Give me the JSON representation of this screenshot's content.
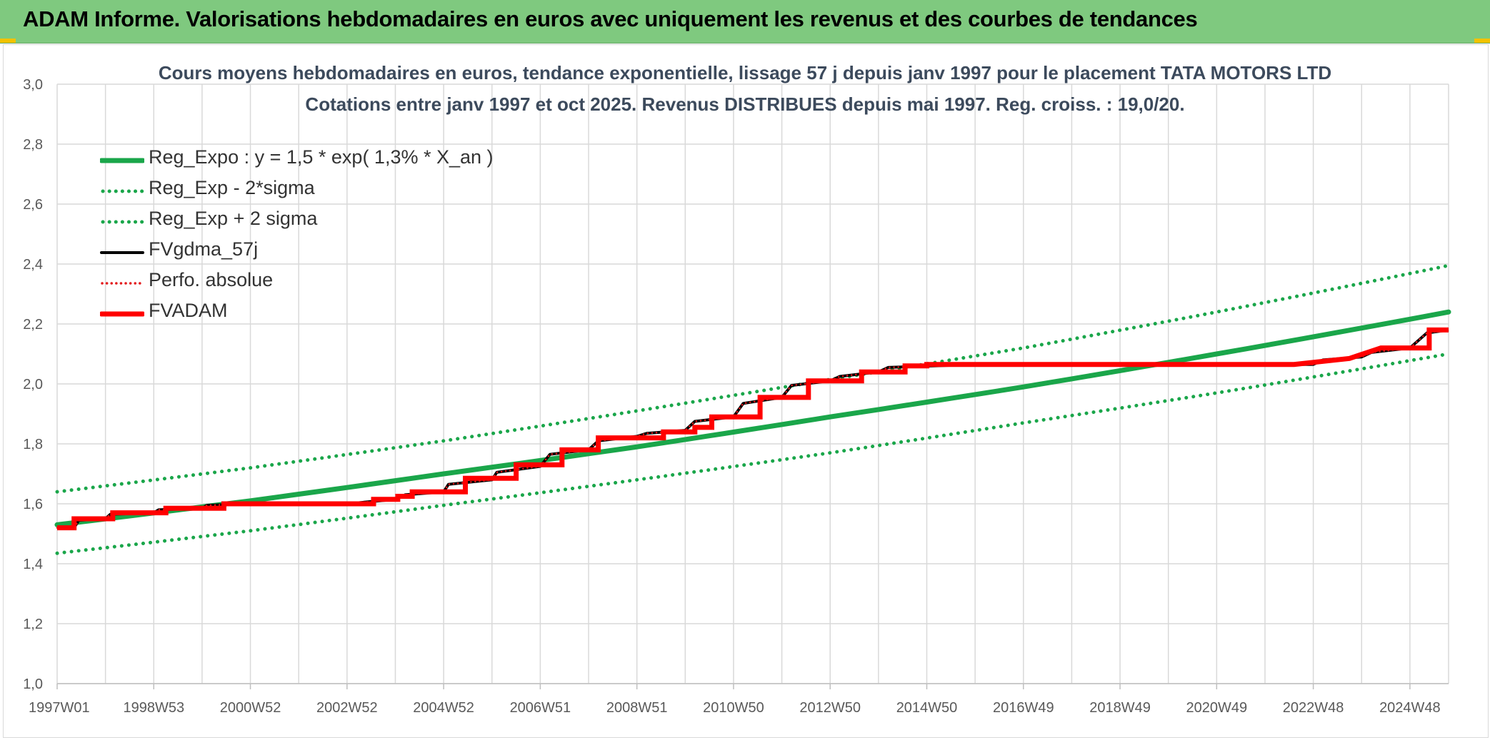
{
  "header": {
    "title": "ADAM Informe. Valorisations hebdomadaires en euros avec uniquement les revenus et des courbes de tendances"
  },
  "colors": {
    "header_bg": "#7fc97f",
    "trend_green": "#1aa64a",
    "band_green": "#1aa64a",
    "fvgdma_black": "#000000",
    "perfo_red": "#e31a1c",
    "fvadam_red": "#ff0000",
    "grid": "#d9d9d9"
  },
  "chart_data": {
    "type": "line",
    "title": "Cours moyens hebdomadaires en euros, tendance exponentielle, lissage 57 j depuis janv 1997 pour le placement TATA MOTORS LTD",
    "subtitle": "Cotations entre janv 1997 et oct 2025. Revenus DISTRIBUES depuis mai 1997. Reg. croiss. : 19,0/20.",
    "xlabel": "",
    "ylabel": "",
    "x_range": [
      1997.0,
      2025.8
    ],
    "ylim": [
      1.0,
      3.0
    ],
    "y_ticks": [
      "1,0",
      "1,2",
      "1,4",
      "1,6",
      "1,8",
      "2,0",
      "2,2",
      "2,4",
      "2,6",
      "2,8",
      "3,0"
    ],
    "y_tick_values": [
      1.0,
      1.2,
      1.4,
      1.6,
      1.8,
      2.0,
      2.2,
      2.4,
      2.6,
      2.8,
      3.0
    ],
    "x_tick_labels": [
      "1997W01",
      "1998W53",
      "2000W52",
      "2002W52",
      "2004W52",
      "2006W51",
      "2008W51",
      "2010W50",
      "2012W50",
      "2014W50",
      "2016W49",
      "2018W49",
      "2020W49",
      "2022W48",
      "2024W48"
    ],
    "x_tick_values": [
      1997.0,
      1999.0,
      2001.0,
      2003.0,
      2005.0,
      2007.0,
      2009.0,
      2011.0,
      2013.0,
      2015.0,
      2017.0,
      2019.0,
      2021.0,
      2023.0,
      2025.0
    ],
    "grid": true,
    "legend_position": "top-left",
    "series": [
      {
        "name": "Reg_Expo : y = 1,5 * exp( 1,3% *  X_an )",
        "style": "solid-thick",
        "x": [
          1997.0,
          2001.0,
          2005.0,
          2009.0,
          2013.0,
          2017.0,
          2021.0,
          2025.8
        ],
        "y": [
          1.53,
          1.61,
          1.7,
          1.79,
          1.89,
          1.99,
          2.1,
          2.24
        ]
      },
      {
        "name": "Reg_Exp - 2*sigma",
        "style": "dotted-green",
        "x": [
          1997.0,
          2001.0,
          2005.0,
          2009.0,
          2013.0,
          2017.0,
          2021.0,
          2025.8
        ],
        "y": [
          1.435,
          1.51,
          1.595,
          1.68,
          1.77,
          1.87,
          1.97,
          2.1
        ]
      },
      {
        "name": "Reg_Exp + 2 sigma",
        "style": "dotted-green",
        "x": [
          1997.0,
          2001.0,
          2005.0,
          2009.0,
          2013.0,
          2017.0,
          2021.0,
          2025.8
        ],
        "y": [
          1.64,
          1.72,
          1.81,
          1.91,
          2.015,
          2.12,
          2.24,
          2.395
        ]
      },
      {
        "name": "FVgdma_57j",
        "style": "solid-thin-black",
        "x": [
          1997.0,
          1997.35,
          1997.45,
          1998.0,
          1998.1,
          1999.0,
          1999.1,
          2000.0,
          2000.1,
          2001.0,
          2003.0,
          2004.0,
          2004.2,
          2005.0,
          2005.1,
          2006.0,
          2006.1,
          2007.0,
          2007.2,
          2008.0,
          2008.2,
          2009.0,
          2009.2,
          2010.0,
          2010.2,
          2011.0,
          2011.2,
          2012.0,
          2012.2,
          2013.0,
          2013.2,
          2014.0,
          2014.2,
          2016.0,
          2023.0,
          2023.2,
          2024.0,
          2024.2,
          2025.0,
          2025.35,
          2025.8
        ],
        "y": [
          1.52,
          1.52,
          1.545,
          1.55,
          1.565,
          1.57,
          1.58,
          1.585,
          1.595,
          1.6,
          1.6,
          1.615,
          1.63,
          1.64,
          1.665,
          1.68,
          1.705,
          1.725,
          1.765,
          1.78,
          1.81,
          1.825,
          1.835,
          1.845,
          1.875,
          1.89,
          1.935,
          1.955,
          1.995,
          2.01,
          2.025,
          2.04,
          2.055,
          2.065,
          2.065,
          2.08,
          2.09,
          2.105,
          2.12,
          2.17,
          2.18
        ]
      },
      {
        "name": "Perfo. absolue",
        "style": "dotted-red",
        "x": [
          1997.0,
          1997.35,
          1997.45,
          1998.0,
          1998.1,
          1999.0,
          1999.1,
          2000.0,
          2000.1,
          2001.0,
          2003.0,
          2004.0,
          2004.2,
          2005.0,
          2005.1,
          2006.0,
          2006.1,
          2007.0,
          2007.2,
          2008.0,
          2008.2,
          2009.0,
          2009.2,
          2010.0,
          2010.2,
          2011.0,
          2011.2,
          2012.0,
          2012.2,
          2013.0,
          2013.2,
          2014.0,
          2014.2,
          2016.0,
          2023.0,
          2023.2,
          2024.0,
          2024.2,
          2025.0,
          2025.35,
          2025.8
        ],
        "y": [
          1.52,
          1.52,
          1.545,
          1.55,
          1.565,
          1.57,
          1.58,
          1.585,
          1.595,
          1.6,
          1.6,
          1.615,
          1.63,
          1.64,
          1.665,
          1.68,
          1.705,
          1.725,
          1.765,
          1.78,
          1.81,
          1.825,
          1.835,
          1.845,
          1.875,
          1.89,
          1.935,
          1.955,
          1.995,
          2.01,
          2.025,
          2.04,
          2.055,
          2.065,
          2.065,
          2.08,
          2.09,
          2.105,
          2.12,
          2.17,
          2.18
        ]
      },
      {
        "name": "FVADAM",
        "style": "solid-thick-red",
        "x": [
          1997.0,
          1997.35,
          1997.35,
          1998.15,
          1998.15,
          1999.25,
          1999.25,
          2000.45,
          2000.45,
          2003.55,
          2003.55,
          2004.05,
          2004.05,
          2004.35,
          2004.35,
          2005.45,
          2005.45,
          2006.5,
          2006.5,
          2007.45,
          2007.45,
          2008.2,
          2008.2,
          2009.55,
          2009.55,
          2010.2,
          2010.2,
          2010.55,
          2010.55,
          2011.55,
          2011.55,
          2012.55,
          2012.55,
          2013.65,
          2013.65,
          2014.55,
          2014.55,
          2015.0,
          2015.0,
          2016.0,
          2022.6,
          2022.6,
          2023.75,
          2023.75,
          2024.4,
          2024.4,
          2025.4,
          2025.4,
          2025.8
        ],
        "y": [
          1.52,
          1.52,
          1.55,
          1.55,
          1.57,
          1.57,
          1.585,
          1.585,
          1.6,
          1.6,
          1.615,
          1.615,
          1.625,
          1.625,
          1.64,
          1.64,
          1.685,
          1.685,
          1.73,
          1.73,
          1.78,
          1.78,
          1.82,
          1.82,
          1.84,
          1.84,
          1.855,
          1.855,
          1.89,
          1.89,
          1.955,
          1.955,
          2.01,
          2.01,
          2.04,
          2.04,
          2.06,
          2.06,
          2.065,
          2.065,
          2.065,
          2.065,
          2.085,
          2.085,
          2.12,
          2.12,
          2.12,
          2.18,
          2.18
        ]
      }
    ]
  }
}
